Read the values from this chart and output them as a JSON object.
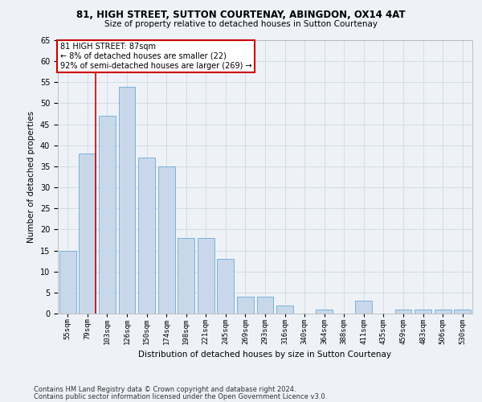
{
  "title1": "81, HIGH STREET, SUTTON COURTENAY, ABINGDON, OX14 4AT",
  "title2": "Size of property relative to detached houses in Sutton Courtenay",
  "xlabel": "Distribution of detached houses by size in Sutton Courtenay",
  "ylabel": "Number of detached properties",
  "footnote1": "Contains HM Land Registry data © Crown copyright and database right 2024.",
  "footnote2": "Contains public sector information licensed under the Open Government Licence v3.0.",
  "categories": [
    "55sqm",
    "79sqm",
    "103sqm",
    "126sqm",
    "150sqm",
    "174sqm",
    "198sqm",
    "221sqm",
    "245sqm",
    "269sqm",
    "293sqm",
    "316sqm",
    "340sqm",
    "364sqm",
    "388sqm",
    "411sqm",
    "435sqm",
    "459sqm",
    "483sqm",
    "506sqm",
    "530sqm"
  ],
  "values": [
    15,
    38,
    47,
    54,
    37,
    35,
    18,
    18,
    13,
    4,
    4,
    2,
    0,
    1,
    0,
    3,
    0,
    1,
    1,
    1,
    1
  ],
  "bar_color": "#c8d8ea",
  "bar_edge_color": "#6aaad4",
  "annotation_text": "81 HIGH STREET: 87sqm\n← 8% of detached houses are smaller (22)\n92% of semi-detached houses are larger (269) →",
  "property_line_index": 1,
  "ylim": [
    0,
    65
  ],
  "yticks": [
    0,
    5,
    10,
    15,
    20,
    25,
    30,
    35,
    40,
    45,
    50,
    55,
    60,
    65
  ],
  "annotation_box_color": "#ffffff",
  "annotation_box_edge": "#cc0000",
  "grid_color": "#d0d8e4",
  "property_line_color": "#cc0000",
  "background_color": "#eef2f7"
}
